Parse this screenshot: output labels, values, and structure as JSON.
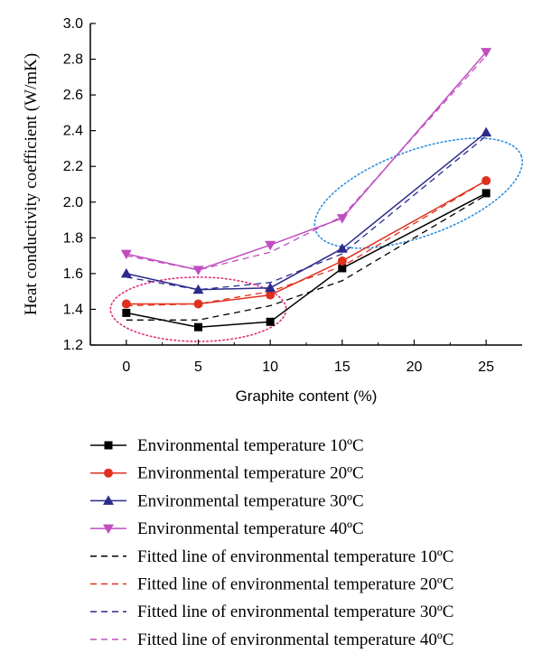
{
  "chart_data": {
    "type": "line",
    "xlabel": "Graphite content (%)",
    "ylabel": "Heat conductivity coefficient (W/mK)",
    "xlim": [
      -2.5,
      27.5
    ],
    "ylim": [
      1.2,
      3.0
    ],
    "xticks": [
      0,
      5,
      10,
      15,
      20,
      25
    ],
    "yticks": [
      1.2,
      1.4,
      1.6,
      1.8,
      2.0,
      2.2,
      2.4,
      2.6,
      2.8,
      3.0
    ],
    "x": [
      0,
      5,
      10,
      15,
      25
    ],
    "series": [
      {
        "name": "Environmental temperature 10ºC",
        "color": "#000000",
        "marker": "square",
        "style": "solid",
        "values": [
          1.38,
          1.3,
          1.33,
          1.63,
          2.05
        ]
      },
      {
        "name": "Environmental temperature 20ºC",
        "color": "#e0301e",
        "marker": "circle",
        "style": "solid",
        "values": [
          1.43,
          1.43,
          1.48,
          1.67,
          2.12
        ]
      },
      {
        "name": "Environmental temperature 30ºC",
        "color": "#2b2a8c",
        "marker": "triangle-up",
        "style": "solid",
        "values": [
          1.6,
          1.51,
          1.52,
          1.74,
          2.39
        ]
      },
      {
        "name": "Environmental temperature 40ºC",
        "color": "#c04ec0",
        "marker": "triangle-down",
        "style": "solid",
        "values": [
          1.71,
          1.62,
          1.76,
          1.91,
          2.84
        ]
      },
      {
        "name": "Fitted line of environmental temperature 10ºC",
        "color": "#000000",
        "marker": "none",
        "style": "dashed",
        "values": [
          1.34,
          1.34,
          1.42,
          1.56,
          2.04
        ]
      },
      {
        "name": "Fitted line of environmental temperature 20ºC",
        "color": "#e0301e",
        "marker": "none",
        "style": "dashed",
        "values": [
          1.42,
          1.43,
          1.5,
          1.64,
          2.12
        ]
      },
      {
        "name": "Fitted line of environmental temperature 30ºC",
        "color": "#2b2a8c",
        "marker": "none",
        "style": "dashed",
        "values": [
          1.58,
          1.51,
          1.55,
          1.71,
          2.37
        ]
      },
      {
        "name": "Fitted line of environmental temperature 40ºC",
        "color": "#c04ec0",
        "marker": "none",
        "style": "dashed",
        "values": [
          1.7,
          1.62,
          1.72,
          1.92,
          2.82
        ]
      }
    ],
    "annotations": [
      {
        "shape": "ellipse",
        "style": "dotted",
        "color": "#e0307a",
        "center": [
          5,
          1.4
        ],
        "radius": [
          6.1,
          0.18
        ]
      },
      {
        "shape": "ellipse",
        "style": "dotted",
        "color": "#2a8de0",
        "center": [
          20.3,
          2.05
        ],
        "radius": [
          7.6,
          0.24
        ],
        "rotation_deg": -20
      }
    ],
    "legend_placement": "below"
  }
}
